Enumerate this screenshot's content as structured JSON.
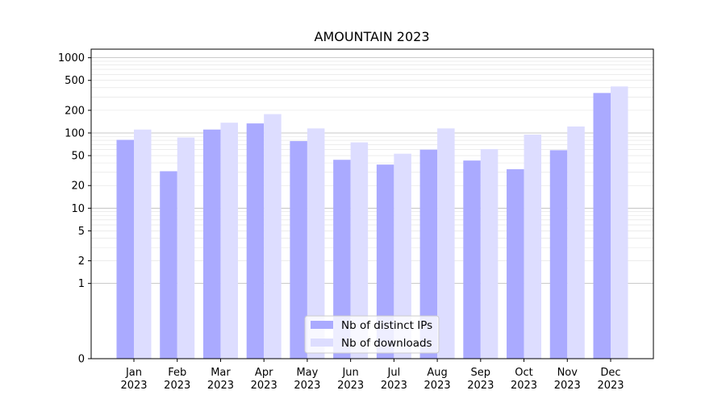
{
  "chart_data": {
    "type": "bar",
    "title": "AMOUNTAIN 2023",
    "xlabel": "",
    "ylabel": "",
    "scale": "symlog",
    "grid": true,
    "legend_position": "bottom-center",
    "categories": [
      {
        "month": "Jan",
        "year": "2023"
      },
      {
        "month": "Feb",
        "year": "2023"
      },
      {
        "month": "Mar",
        "year": "2023"
      },
      {
        "month": "Apr",
        "year": "2023"
      },
      {
        "month": "May",
        "year": "2023"
      },
      {
        "month": "Jun",
        "year": "2023"
      },
      {
        "month": "Jul",
        "year": "2023"
      },
      {
        "month": "Aug",
        "year": "2023"
      },
      {
        "month": "Sep",
        "year": "2023"
      },
      {
        "month": "Oct",
        "year": "2023"
      },
      {
        "month": "Nov",
        "year": "2023"
      },
      {
        "month": "Dec",
        "year": "2023"
      }
    ],
    "y_ticks": [
      0,
      1,
      2,
      5,
      10,
      20,
      50,
      100,
      200,
      500,
      1000
    ],
    "ylim": [
      0,
      1300
    ],
    "series": [
      {
        "name": "Nb of distinct IPs",
        "color": "#aaaaff",
        "values": [
          81,
          31,
          111,
          134,
          78,
          44,
          38,
          60,
          43,
          33,
          59,
          340
        ]
      },
      {
        "name": "Nb of downloads",
        "color": "#ddddff",
        "values": [
          111,
          87,
          137,
          178,
          115,
          75,
          53,
          115,
          61,
          95,
          122,
          415
        ]
      }
    ]
  }
}
